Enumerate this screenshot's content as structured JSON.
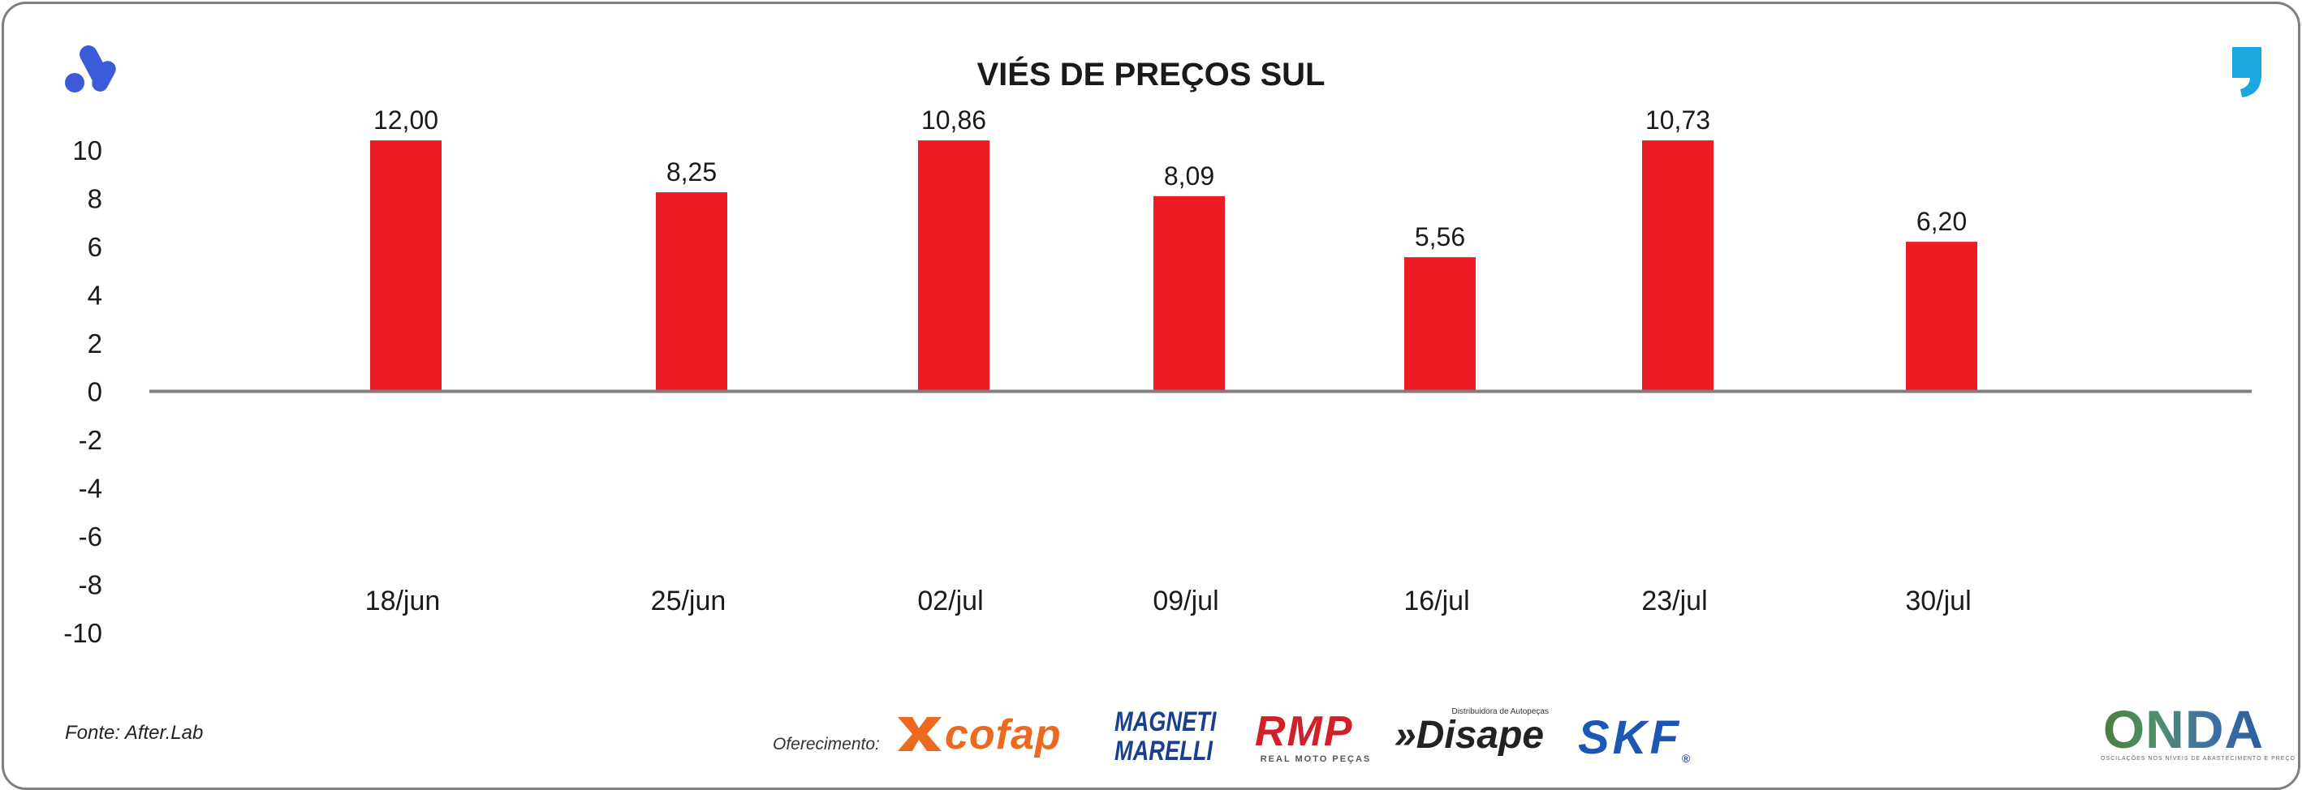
{
  "chart_data": {
    "type": "bar",
    "title": "VIÉS DE PREÇOS SUL",
    "xlabel": "",
    "ylabel": "",
    "categories": [
      "18/jun",
      "25/jun",
      "02/jul",
      "09/jul",
      "16/jul",
      "23/jul",
      "30/jul"
    ],
    "values": [
      12.0,
      8.25,
      10.86,
      8.09,
      5.56,
      10.73,
      6.2
    ],
    "data_labels": [
      "12,00",
      "8,25",
      "10,86",
      "8,09",
      "5,56",
      "10,73",
      "6,20"
    ],
    "yticks": [
      "10",
      "8",
      "6",
      "4",
      "2",
      "0",
      "-2",
      "-4",
      "-6",
      "-8",
      "-10"
    ],
    "ylim": [
      -10,
      10
    ],
    "grid": false,
    "legend": "none",
    "bar_color": "#ed1c24",
    "axis_color": "#7f7f7f"
  },
  "footer": {
    "source": "Fonte: After.Lab",
    "sponsor_label": "Oferecimento:",
    "sponsors": {
      "cofap": "cofap",
      "magneti_line1": "MAGNETI",
      "magneti_line2": "MARELLI",
      "rmp": "RMP",
      "rmp_tagline": "REAL MOTO PEÇAS",
      "disape_tagline": "Distribuidora de Autopeças",
      "disape": "»Disape",
      "skf": "SKF",
      "skf_mark": "®",
      "onda": "ONDA",
      "onda_tagline": "OSCILAÇÕES NOS NÍVEIS DE ABASTECIMENTO E PREÇO"
    }
  },
  "icons": {
    "top_left": "brand-a-logo-icon",
    "top_right": "comma-quote-icon"
  },
  "colors": {
    "brand_blue": "#3b5bdb",
    "quote_cyan": "#1aa7e0"
  }
}
